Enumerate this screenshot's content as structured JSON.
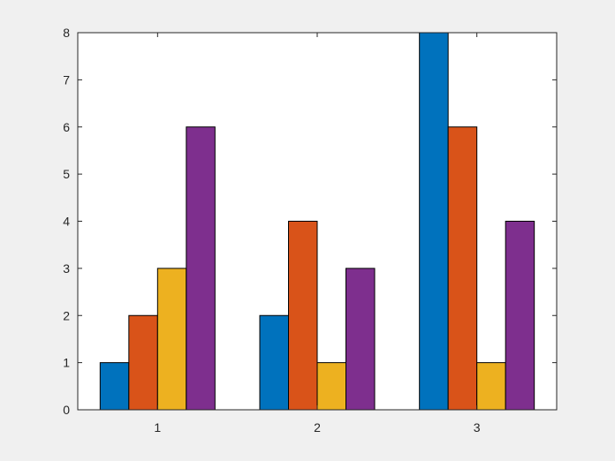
{
  "figure": {
    "background_color": "#f0f0f0",
    "axes_background_color": "#ffffff"
  },
  "chart_data": {
    "type": "bar",
    "categories": [
      "1",
      "2",
      "3"
    ],
    "series": [
      {
        "color": "#0072bd",
        "values": [
          1,
          2,
          8
        ]
      },
      {
        "color": "#d95319",
        "values": [
          2,
          4,
          6
        ]
      },
      {
        "color": "#edb120",
        "values": [
          3,
          1,
          1
        ]
      },
      {
        "color": "#7e2f8e",
        "values": [
          6,
          3,
          4
        ]
      }
    ],
    "title": "",
    "xlabel": "",
    "ylabel": "",
    "ylim": [
      0,
      8
    ],
    "yticks": [
      0,
      1,
      2,
      3,
      4,
      5,
      6,
      7,
      8
    ],
    "grid": false,
    "box": true
  }
}
